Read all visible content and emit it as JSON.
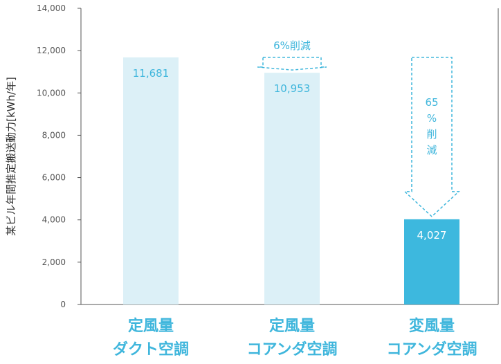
{
  "chart_data": {
    "type": "bar",
    "ylabel": "某ビル年間推定搬送動力[kWh/年]",
    "ylim": [
      0,
      14000
    ],
    "yticks": [
      0,
      2000,
      4000,
      6000,
      8000,
      10000,
      12000,
      14000
    ],
    "ytick_labels": [
      "0",
      "2,000",
      "4,000",
      "6,000",
      "8,000",
      "10,000",
      "12,000",
      "14,000"
    ],
    "grid": false,
    "categories": [
      {
        "line1": "定風量",
        "line2": "ダクト空調"
      },
      {
        "line1": "定風量",
        "line2": "コアンダ空調"
      },
      {
        "line1": "変風量",
        "line2": "コアンダ空調"
      }
    ],
    "values": [
      11681,
      10953,
      4027
    ],
    "value_labels": [
      "11,681",
      "10,953",
      "4,027"
    ],
    "bar_colors": [
      "#dcf0f7",
      "#dcf0f7",
      "#3db8de"
    ],
    "label_colors": [
      "#3fb6dc",
      "#3fb6dc",
      "#ffffff"
    ],
    "annotations": [
      {
        "label": "6%削減",
        "from_value": 11681,
        "to_value": 10953,
        "category_index": 1
      },
      {
        "label_chars": [
          "65",
          "%",
          "削",
          "減"
        ],
        "from_value": 11681,
        "to_value": 4027,
        "category_index": 2
      }
    ],
    "accent_color": "#3fb6dc"
  }
}
